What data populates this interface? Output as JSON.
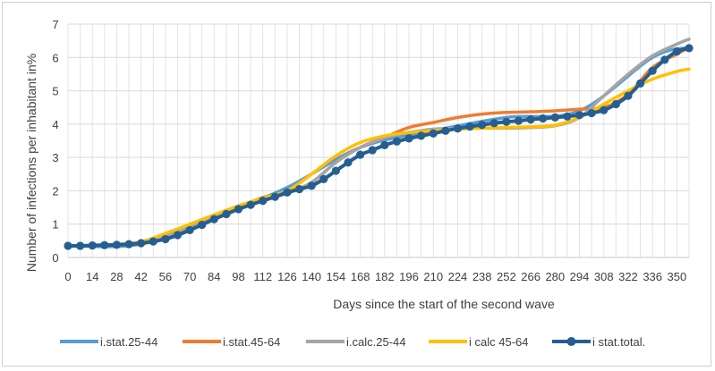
{
  "chart_data": {
    "type": "line",
    "title": "",
    "xlabel": "Days since  the start of the second wave",
    "ylabel": "Number of infections per inhabitant in%",
    "xlim": [
      0,
      357
    ],
    "ylim": [
      0,
      7
    ],
    "yticks": [
      0,
      1,
      2,
      3,
      4,
      5,
      6,
      7
    ],
    "xticks": [
      0,
      14,
      28,
      42,
      56,
      70,
      84,
      98,
      112,
      126,
      140,
      154,
      168,
      182,
      196,
      210,
      224,
      238,
      252,
      266,
      280,
      294,
      308,
      322,
      336,
      350
    ],
    "grid": "vertical and horizontal",
    "legend_position": "bottom",
    "series": [
      {
        "name": "i.stat.25-44",
        "color": "#5B9BD5",
        "marker": "none",
        "x": [
          0,
          42,
          84,
          126,
          168,
          210,
          252,
          294,
          336,
          357
        ],
        "y": [
          0.35,
          0.4,
          1.2,
          2.1,
          3.3,
          3.8,
          4.2,
          4.4,
          6.0,
          6.3
        ]
      },
      {
        "name": "i.stat.45-64",
        "color": "#ED7D31",
        "marker": "none",
        "x": [
          0,
          14,
          28,
          42,
          56,
          70,
          84,
          98,
          112,
          126,
          140,
          154,
          168,
          182,
          196,
          210,
          224,
          238,
          252,
          266,
          280,
          294,
          308,
          322,
          336,
          350,
          357
        ],
        "y": [
          0.35,
          0.36,
          0.38,
          0.42,
          0.58,
          0.85,
          1.2,
          1.5,
          1.8,
          1.95,
          2.25,
          2.85,
          3.3,
          3.6,
          3.9,
          4.05,
          4.2,
          4.3,
          4.35,
          4.37,
          4.4,
          4.45,
          4.5,
          4.9,
          5.7,
          6.1,
          6.3
        ]
      },
      {
        "name": "i.calc.25-44",
        "color": "#A5A5A5",
        "marker": "none",
        "x": [
          0,
          14,
          28,
          42,
          56,
          70,
          84,
          98,
          112,
          126,
          140,
          154,
          168,
          182,
          196,
          210,
          224,
          238,
          252,
          266,
          280,
          294,
          308,
          322,
          336,
          350,
          357
        ],
        "y": [
          0.35,
          0.36,
          0.39,
          0.44,
          0.65,
          0.93,
          1.22,
          1.5,
          1.75,
          1.92,
          2.25,
          2.85,
          3.3,
          3.6,
          3.75,
          3.85,
          3.87,
          3.88,
          3.88,
          3.9,
          3.95,
          4.2,
          4.85,
          5.5,
          6.05,
          6.4,
          6.55
        ]
      },
      {
        "name": "i calc 45-64",
        "color": "#FFC000",
        "marker": "none",
        "x": [
          0,
          14,
          28,
          42,
          56,
          70,
          84,
          98,
          112,
          126,
          140,
          154,
          168,
          182,
          196,
          210,
          224,
          238,
          252,
          266,
          280,
          294,
          308,
          322,
          336,
          350,
          357
        ],
        "y": [
          0.35,
          0.37,
          0.4,
          0.47,
          0.72,
          1.0,
          1.28,
          1.55,
          1.78,
          2.0,
          2.5,
          3.05,
          3.45,
          3.65,
          3.75,
          3.8,
          3.85,
          3.88,
          3.9,
          3.92,
          3.97,
          4.2,
          4.6,
          5.0,
          5.35,
          5.58,
          5.65
        ]
      },
      {
        "name": "i stat.total.",
        "color": "#255E91",
        "marker": "circle",
        "x": [
          0,
          7,
          14,
          21,
          28,
          35,
          42,
          49,
          56,
          63,
          70,
          77,
          84,
          91,
          98,
          105,
          112,
          119,
          126,
          133,
          140,
          147,
          154,
          161,
          168,
          175,
          182,
          189,
          196,
          203,
          210,
          217,
          224,
          231,
          238,
          245,
          252,
          259,
          266,
          273,
          280,
          287,
          294,
          301,
          308,
          315,
          322,
          329,
          336,
          343,
          350,
          357
        ],
        "y": [
          0.35,
          0.35,
          0.36,
          0.37,
          0.38,
          0.4,
          0.43,
          0.48,
          0.55,
          0.67,
          0.82,
          0.98,
          1.15,
          1.3,
          1.45,
          1.58,
          1.7,
          1.82,
          1.95,
          2.05,
          2.15,
          2.35,
          2.6,
          2.85,
          3.08,
          3.22,
          3.37,
          3.48,
          3.57,
          3.65,
          3.72,
          3.8,
          3.87,
          3.93,
          3.98,
          4.03,
          4.07,
          4.1,
          4.14,
          4.17,
          4.2,
          4.23,
          4.27,
          4.33,
          4.42,
          4.6,
          4.85,
          5.22,
          5.6,
          5.93,
          6.18,
          6.28
        ]
      }
    ]
  }
}
